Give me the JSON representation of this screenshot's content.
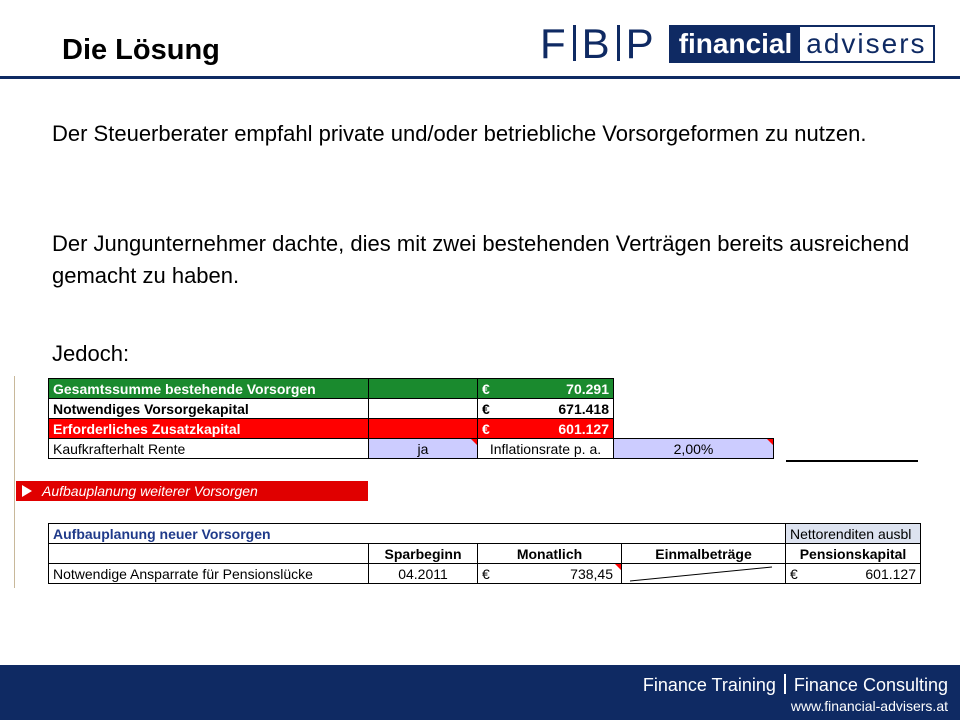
{
  "title": "Die Lösung",
  "logo": {
    "letters": [
      "F",
      "B",
      "P"
    ],
    "word1": "financial",
    "word2": "advisers"
  },
  "paragraphs": [
    "Der Steuerberater empfahl private und/oder betriebliche Vorsorgeformen zu nutzen.",
    "Der Jungunternehmer dachte, dies mit zwei bestehenden Verträgen bereits ausreichend gemacht zu haben.",
    "Jedoch:"
  ],
  "table1": {
    "rows": [
      {
        "label": "Gesamtssumme bestehende Vorsorgen",
        "currency": "€",
        "value": "70.291"
      },
      {
        "label": "Notwendiges Vorsorgekapital",
        "currency": "€",
        "value": "671.418"
      },
      {
        "label": "Erforderliches Zusatzkapital",
        "currency": "€",
        "value": "601.127"
      }
    ],
    "kaufkraft": {
      "label": "Kaufkrafterhalt Rente",
      "value": "ja",
      "inflation_label": "Inflationsrate p. a.",
      "inflation_value": "2,00%"
    }
  },
  "section_bar": "Aufbauplanung weiterer Vorsorgen",
  "table2": {
    "title": "Aufbauplanung neuer Vorsorgen",
    "right_note": "Nettorenditen ausbl",
    "headers": [
      "Sparbeginn",
      "Monatlich",
      "Einmalbeträge",
      "Pensionskapital"
    ],
    "row": {
      "label": "Notwendige Ansparrate für Pensionslücke",
      "sparbeginn": "04.2011",
      "currency": "€",
      "monatlich": "738,45",
      "einmal": "",
      "pension_currency": "€",
      "pensionskapital": "601.127"
    }
  },
  "footer": {
    "left": "Finance Training",
    "right": "Finance Consulting",
    "url": "www.financial-advisers.at"
  },
  "colors": {
    "navy": "#0f2a63",
    "green": "#1a8a2e",
    "red": "#ff0000",
    "lavender": "#ccccff"
  }
}
